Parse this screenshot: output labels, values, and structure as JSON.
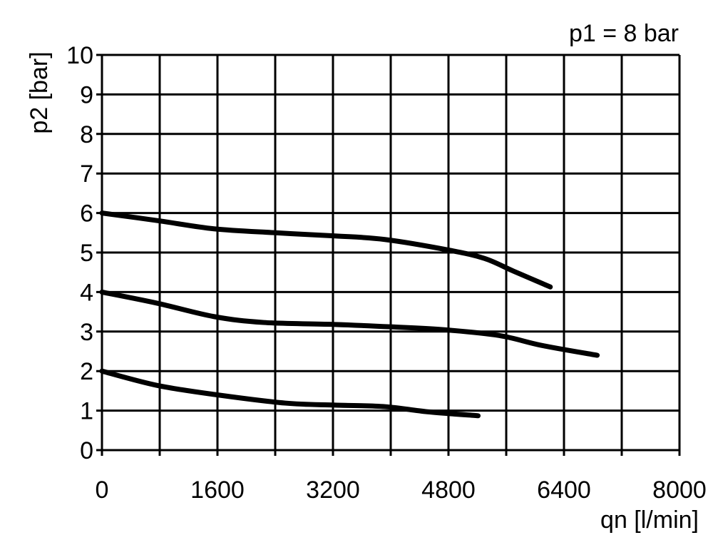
{
  "chart_data": {
    "type": "line",
    "title": "p1 = 8 bar",
    "xlabel": "qn [l/min]",
    "ylabel": "p2 [bar]",
    "xlim": [
      0,
      8000
    ],
    "ylim": [
      0,
      10
    ],
    "xticks": [
      0,
      1600,
      3200,
      4800,
      6400,
      8000
    ],
    "xtick_labels": [
      "0",
      "1600",
      "3200",
      "4800",
      "6400",
      "8000"
    ],
    "yticks": [
      0,
      1,
      2,
      3,
      4,
      5,
      6,
      7,
      8,
      9,
      10
    ],
    "ytick_labels": [
      "0",
      "1",
      "2",
      "3",
      "4",
      "5",
      "6",
      "7",
      "8",
      "9",
      "10"
    ],
    "x_grid_step": 800,
    "grid": true,
    "line_color": "#000000",
    "series": [
      {
        "x": [
          0,
          800,
          1550,
          2400,
          3230,
          3920,
          4810,
          5300,
          5700,
          6210
        ],
        "y": [
          6.0,
          5.8,
          5.6,
          5.5,
          5.42,
          5.33,
          5.06,
          4.85,
          4.53,
          4.13
        ]
      },
      {
        "x": [
          0,
          760,
          1550,
          2240,
          3230,
          4000,
          4710,
          5500,
          6090,
          6860
        ],
        "y": [
          4.0,
          3.72,
          3.38,
          3.23,
          3.18,
          3.12,
          3.05,
          2.9,
          2.65,
          2.4
        ]
      },
      {
        "x": [
          0,
          760,
          1550,
          2540,
          3230,
          3920,
          4510,
          5210
        ],
        "y": [
          2.0,
          1.64,
          1.41,
          1.19,
          1.14,
          1.1,
          0.97,
          0.87
        ]
      }
    ]
  }
}
